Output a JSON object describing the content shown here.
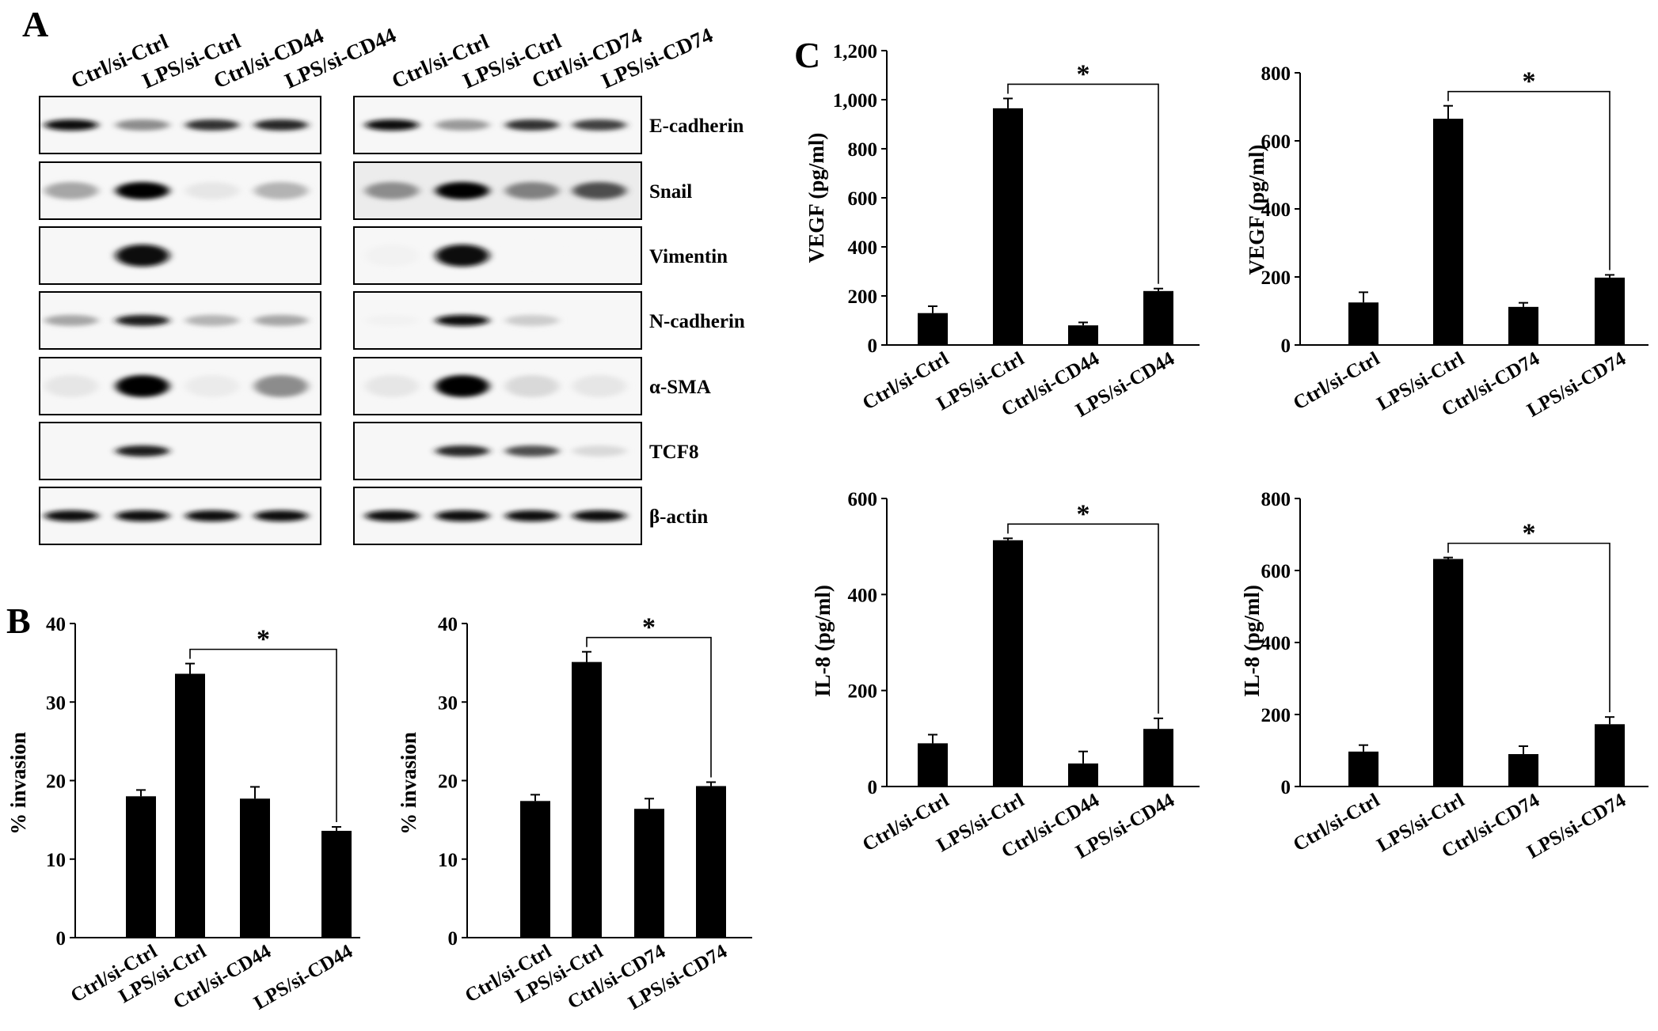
{
  "panel_labels": [
    "A",
    "B",
    "C"
  ],
  "blots": [
    {
      "lanes": [
        "Ctrl/si-Ctrl",
        "LPS/si-Ctrl",
        "Ctrl/si-CD44",
        "LPS/si-CD44"
      ],
      "intensities": {
        "E-cadherin": [
          0.95,
          0.45,
          0.8,
          0.85
        ],
        "Snail": [
          0.35,
          1.0,
          0.1,
          0.3
        ],
        "Vimentin": [
          0.0,
          0.95,
          0.0,
          0.0
        ],
        "N-cadherin": [
          0.35,
          0.9,
          0.3,
          0.35
        ],
        "α-SMA": [
          0.1,
          1.0,
          0.08,
          0.45
        ],
        "TCF8": [
          0.0,
          0.9,
          0.0,
          0.0
        ],
        "β-actin": [
          0.95,
          0.95,
          0.95,
          0.95
        ]
      }
    },
    {
      "lanes": [
        "Ctrl/si-Ctrl",
        "LPS/si-Ctrl",
        "Ctrl/si-CD74",
        "LPS/si-CD74"
      ],
      "intensities": {
        "E-cadherin": [
          0.95,
          0.4,
          0.8,
          0.75
        ],
        "Snail": [
          0.45,
          1.0,
          0.5,
          0.7
        ],
        "Vimentin": [
          0.05,
          0.95,
          0.03,
          0.03
        ],
        "N-cadherin": [
          0.05,
          0.95,
          0.2,
          0.03
        ],
        "α-SMA": [
          0.1,
          1.0,
          0.15,
          0.1
        ],
        "TCF8": [
          0.0,
          0.85,
          0.7,
          0.15
        ],
        "β-actin": [
          0.95,
          0.95,
          0.95,
          0.95
        ]
      }
    }
  ],
  "proteins": [
    "E-cadherin",
    "Snail",
    "Vimentin",
    "N-cadherin",
    "α-SMA",
    "TCF8",
    "β-actin"
  ],
  "chart_data": [
    {
      "type": "bar",
      "categories": [
        "Ctrl/si-Ctrl",
        "LPS/si-Ctrl",
        "Ctrl/si-CD44",
        "LPS/si-CD44"
      ],
      "values": [
        18.0,
        33.6,
        17.7,
        13.6
      ],
      "errors": [
        0.8,
        1.3,
        1.5,
        0.5
      ],
      "ylabel": "% invasion",
      "ylim": [
        0,
        40
      ],
      "yticks": [
        "0",
        "10",
        "20",
        "30",
        "40"
      ],
      "significance": {
        "from": 1,
        "to": 3,
        "label": "*"
      },
      "color": "#000000"
    },
    {
      "type": "bar",
      "categories": [
        "Ctrl/si-Ctrl",
        "LPS/si-Ctrl",
        "Ctrl/si-CD74",
        "LPS/si-CD74"
      ],
      "values": [
        17.4,
        35.1,
        16.4,
        19.3
      ],
      "errors": [
        0.8,
        1.3,
        1.3,
        0.5
      ],
      "ylabel": "% invasion",
      "ylim": [
        0,
        40
      ],
      "yticks": [
        "0",
        "10",
        "20",
        "30",
        "40"
      ],
      "significance": {
        "from": 1,
        "to": 3,
        "label": "*"
      },
      "color": "#000000"
    },
    {
      "type": "bar",
      "categories": [
        "Ctrl/si-Ctrl",
        "LPS/si-Ctrl",
        "Ctrl/si-CD44",
        "LPS/si-CD44"
      ],
      "values": [
        130,
        965,
        80,
        220
      ],
      "errors": [
        28,
        40,
        12,
        10
      ],
      "ylabel": "VEGF (pg/ml)",
      "ylim": [
        0,
        1200
      ],
      "yticks": [
        "0",
        "200",
        "400",
        "600",
        "800",
        "1,000",
        "1,200"
      ],
      "significance": {
        "from": 1,
        "to": 3,
        "label": "*"
      },
      "color": "#000000"
    },
    {
      "type": "bar",
      "categories": [
        "Ctrl/si-Ctrl",
        "LPS/si-Ctrl",
        "Ctrl/si-CD74",
        "LPS/si-CD74"
      ],
      "values": [
        125,
        665,
        112,
        198
      ],
      "errors": [
        30,
        38,
        12,
        8
      ],
      "ylabel": "VEGF (pg/ml)",
      "ylim": [
        0,
        800
      ],
      "yticks": [
        "0",
        "200",
        "400",
        "600",
        "800"
      ],
      "significance": {
        "from": 1,
        "to": 3,
        "label": "*"
      },
      "color": "#000000"
    },
    {
      "type": "bar",
      "categories": [
        "Ctrl/si-Ctrl",
        "LPS/si-Ctrl",
        "Ctrl/si-CD44",
        "LPS/si-CD44"
      ],
      "values": [
        90,
        513,
        48,
        120
      ],
      "errors": [
        18,
        4,
        25,
        22
      ],
      "ylabel": "IL-8 (pg/ml)",
      "ylim": [
        0,
        600
      ],
      "yticks": [
        "0",
        "200",
        "400",
        "600"
      ],
      "significance": {
        "from": 1,
        "to": 3,
        "label": "*"
      },
      "color": "#000000"
    },
    {
      "type": "bar",
      "categories": [
        "Ctrl/si-Ctrl",
        "LPS/si-Ctrl",
        "Ctrl/si-CD74",
        "LPS/si-CD74"
      ],
      "values": [
        97,
        632,
        90,
        173
      ],
      "errors": [
        18,
        4,
        22,
        20
      ],
      "ylabel": "IL-8 (pg/ml)",
      "ylim": [
        0,
        800
      ],
      "yticks": [
        "0",
        "200",
        "400",
        "600",
        "800"
      ],
      "significance": {
        "from": 1,
        "to": 3,
        "label": "*"
      },
      "color": "#000000"
    }
  ]
}
